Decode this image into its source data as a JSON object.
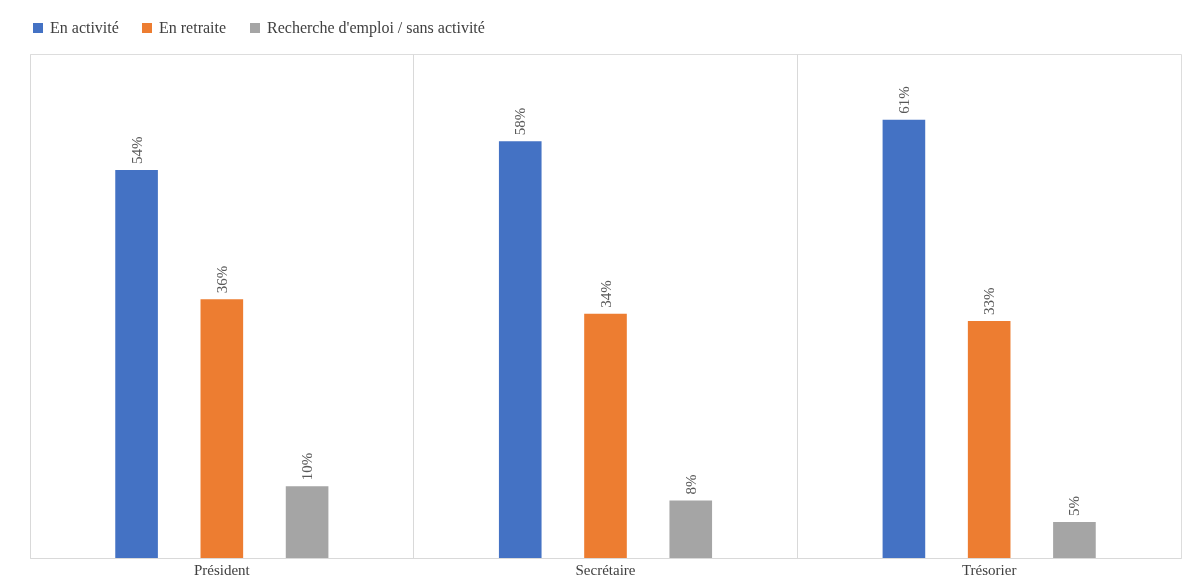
{
  "chart_data": {
    "type": "bar",
    "categories": [
      "Président",
      "Secrétaire",
      "Trésorier"
    ],
    "series": [
      {
        "name": "En activité",
        "color": "#4472c4",
        "values": [
          54,
          58,
          61
        ],
        "value_labels": [
          "54%",
          "58%",
          "61%"
        ]
      },
      {
        "name": "En retraite",
        "color": "#ed7d31",
        "values": [
          36,
          34,
          33
        ],
        "value_labels": [
          "36%",
          "34%",
          "33%"
        ]
      },
      {
        "name": "Recherche d'emploi / sans activité",
        "color": "#a5a5a5",
        "values": [
          10,
          8,
          5
        ],
        "value_labels": [
          "10%",
          "8%",
          "5%"
        ]
      }
    ],
    "tick_labels": "x",
    "grid": "x",
    "legend": "top"
  }
}
